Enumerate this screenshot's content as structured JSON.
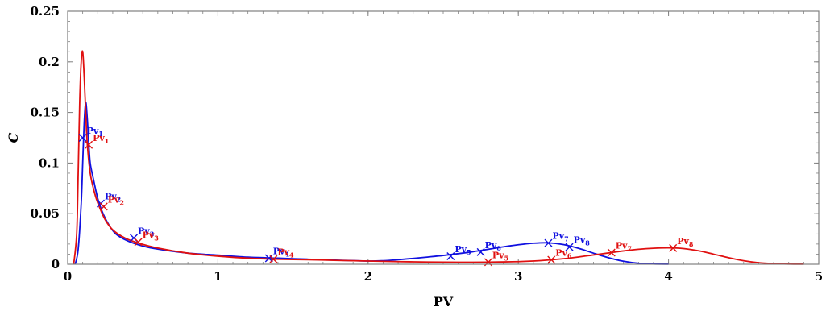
{
  "chart_data": {
    "type": "line",
    "title": "",
    "xlabel": "PV",
    "ylabel": "C",
    "xlim": [
      0,
      5
    ],
    "ylim": [
      0,
      0.25
    ],
    "xticks": [
      0,
      1,
      2,
      3,
      4,
      5
    ],
    "yticks": [
      0,
      0.05,
      0.1,
      0.15,
      0.2,
      0.25
    ],
    "xtick_labels": [
      "0",
      "1",
      "2",
      "3",
      "4",
      "5"
    ],
    "ytick_labels": [
      "0",
      "0.05",
      "0.1",
      "0.15",
      "0.2",
      "0.25"
    ],
    "grid": false,
    "legend": "none",
    "series": [
      {
        "color": "#1010e0",
        "x": [
          0.05,
          0.07,
          0.09,
          0.1,
          0.11,
          0.12,
          0.13,
          0.14,
          0.15,
          0.17,
          0.2,
          0.23,
          0.27,
          0.32,
          0.4,
          0.5,
          0.6,
          0.8,
          1.0,
          1.2,
          1.4,
          1.6,
          1.8,
          2.0,
          2.1,
          2.2,
          2.3,
          2.4,
          2.5,
          2.6,
          2.7,
          2.8,
          2.9,
          3.0,
          3.1,
          3.2,
          3.3,
          3.4,
          3.5,
          3.6,
          3.7,
          3.8,
          3.9,
          4.0
        ],
        "y": [
          0.0,
          0.015,
          0.06,
          0.1,
          0.14,
          0.16,
          0.145,
          0.12,
          0.1,
          0.085,
          0.065,
          0.052,
          0.04,
          0.03,
          0.023,
          0.018,
          0.015,
          0.011,
          0.009,
          0.007,
          0.006,
          0.005,
          0.004,
          0.0032,
          0.0035,
          0.0045,
          0.0058,
          0.0072,
          0.0087,
          0.0105,
          0.0125,
          0.0148,
          0.0172,
          0.0193,
          0.0208,
          0.0212,
          0.0195,
          0.0158,
          0.011,
          0.0065,
          0.003,
          0.001,
          0.0003,
          0.0001
        ],
        "markers": [
          {
            "label": "Pv",
            "sub": "1",
            "x": 0.1,
            "y": 0.125
          },
          {
            "label": "Pv",
            "sub": "2",
            "x": 0.22,
            "y": 0.06
          },
          {
            "label": "Pv",
            "sub": "3",
            "x": 0.44,
            "y": 0.026
          },
          {
            "label": "Pv",
            "sub": "4",
            "x": 1.34,
            "y": 0.006
          },
          {
            "label": "Pv",
            "sub": "5",
            "x": 2.55,
            "y": 0.008
          },
          {
            "label": "Pv",
            "sub": "6",
            "x": 2.75,
            "y": 0.012
          },
          {
            "label": "Pv",
            "sub": "7",
            "x": 3.2,
            "y": 0.021
          },
          {
            "label": "Pv",
            "sub": "8",
            "x": 3.34,
            "y": 0.017
          }
        ]
      },
      {
        "color": "#e01010",
        "x": [
          0.04,
          0.06,
          0.07,
          0.08,
          0.09,
          0.1,
          0.11,
          0.12,
          0.13,
          0.15,
          0.18,
          0.21,
          0.25,
          0.3,
          0.38,
          0.47,
          0.6,
          0.8,
          1.0,
          1.2,
          1.4,
          1.6,
          1.8,
          2.0,
          2.2,
          2.4,
          2.6,
          2.8,
          3.0,
          3.1,
          3.2,
          3.3,
          3.4,
          3.5,
          3.6,
          3.7,
          3.8,
          3.9,
          4.0,
          4.1,
          4.2,
          4.3,
          4.4,
          4.5,
          4.6,
          4.7,
          4.8,
          4.9
        ],
        "y": [
          0.0,
          0.03,
          0.09,
          0.16,
          0.2,
          0.21,
          0.185,
          0.15,
          0.12,
          0.09,
          0.07,
          0.057,
          0.044,
          0.034,
          0.026,
          0.021,
          0.016,
          0.011,
          0.008,
          0.006,
          0.005,
          0.0045,
          0.0038,
          0.0032,
          0.0026,
          0.0022,
          0.002,
          0.0021,
          0.0026,
          0.0032,
          0.0042,
          0.0055,
          0.0072,
          0.0092,
          0.0112,
          0.0132,
          0.0148,
          0.0158,
          0.0162,
          0.0155,
          0.0133,
          0.01,
          0.0065,
          0.0035,
          0.0015,
          0.0006,
          0.0002,
          0.0001
        ],
        "markers": [
          {
            "label": "Pv",
            "sub": "1",
            "x": 0.14,
            "y": 0.118
          },
          {
            "label": "Pv",
            "sub": "2",
            "x": 0.24,
            "y": 0.057
          },
          {
            "label": "Pv",
            "sub": "3",
            "x": 0.47,
            "y": 0.022
          },
          {
            "label": "Pv",
            "sub": "4",
            "x": 1.37,
            "y": 0.005
          },
          {
            "label": "Pv",
            "sub": "5",
            "x": 2.8,
            "y": 0.0021
          },
          {
            "label": "Pv",
            "sub": "6",
            "x": 3.22,
            "y": 0.0044
          },
          {
            "label": "Pv",
            "sub": "7",
            "x": 3.62,
            "y": 0.0115
          },
          {
            "label": "Pv",
            "sub": "8",
            "x": 4.03,
            "y": 0.016
          }
        ]
      }
    ]
  }
}
